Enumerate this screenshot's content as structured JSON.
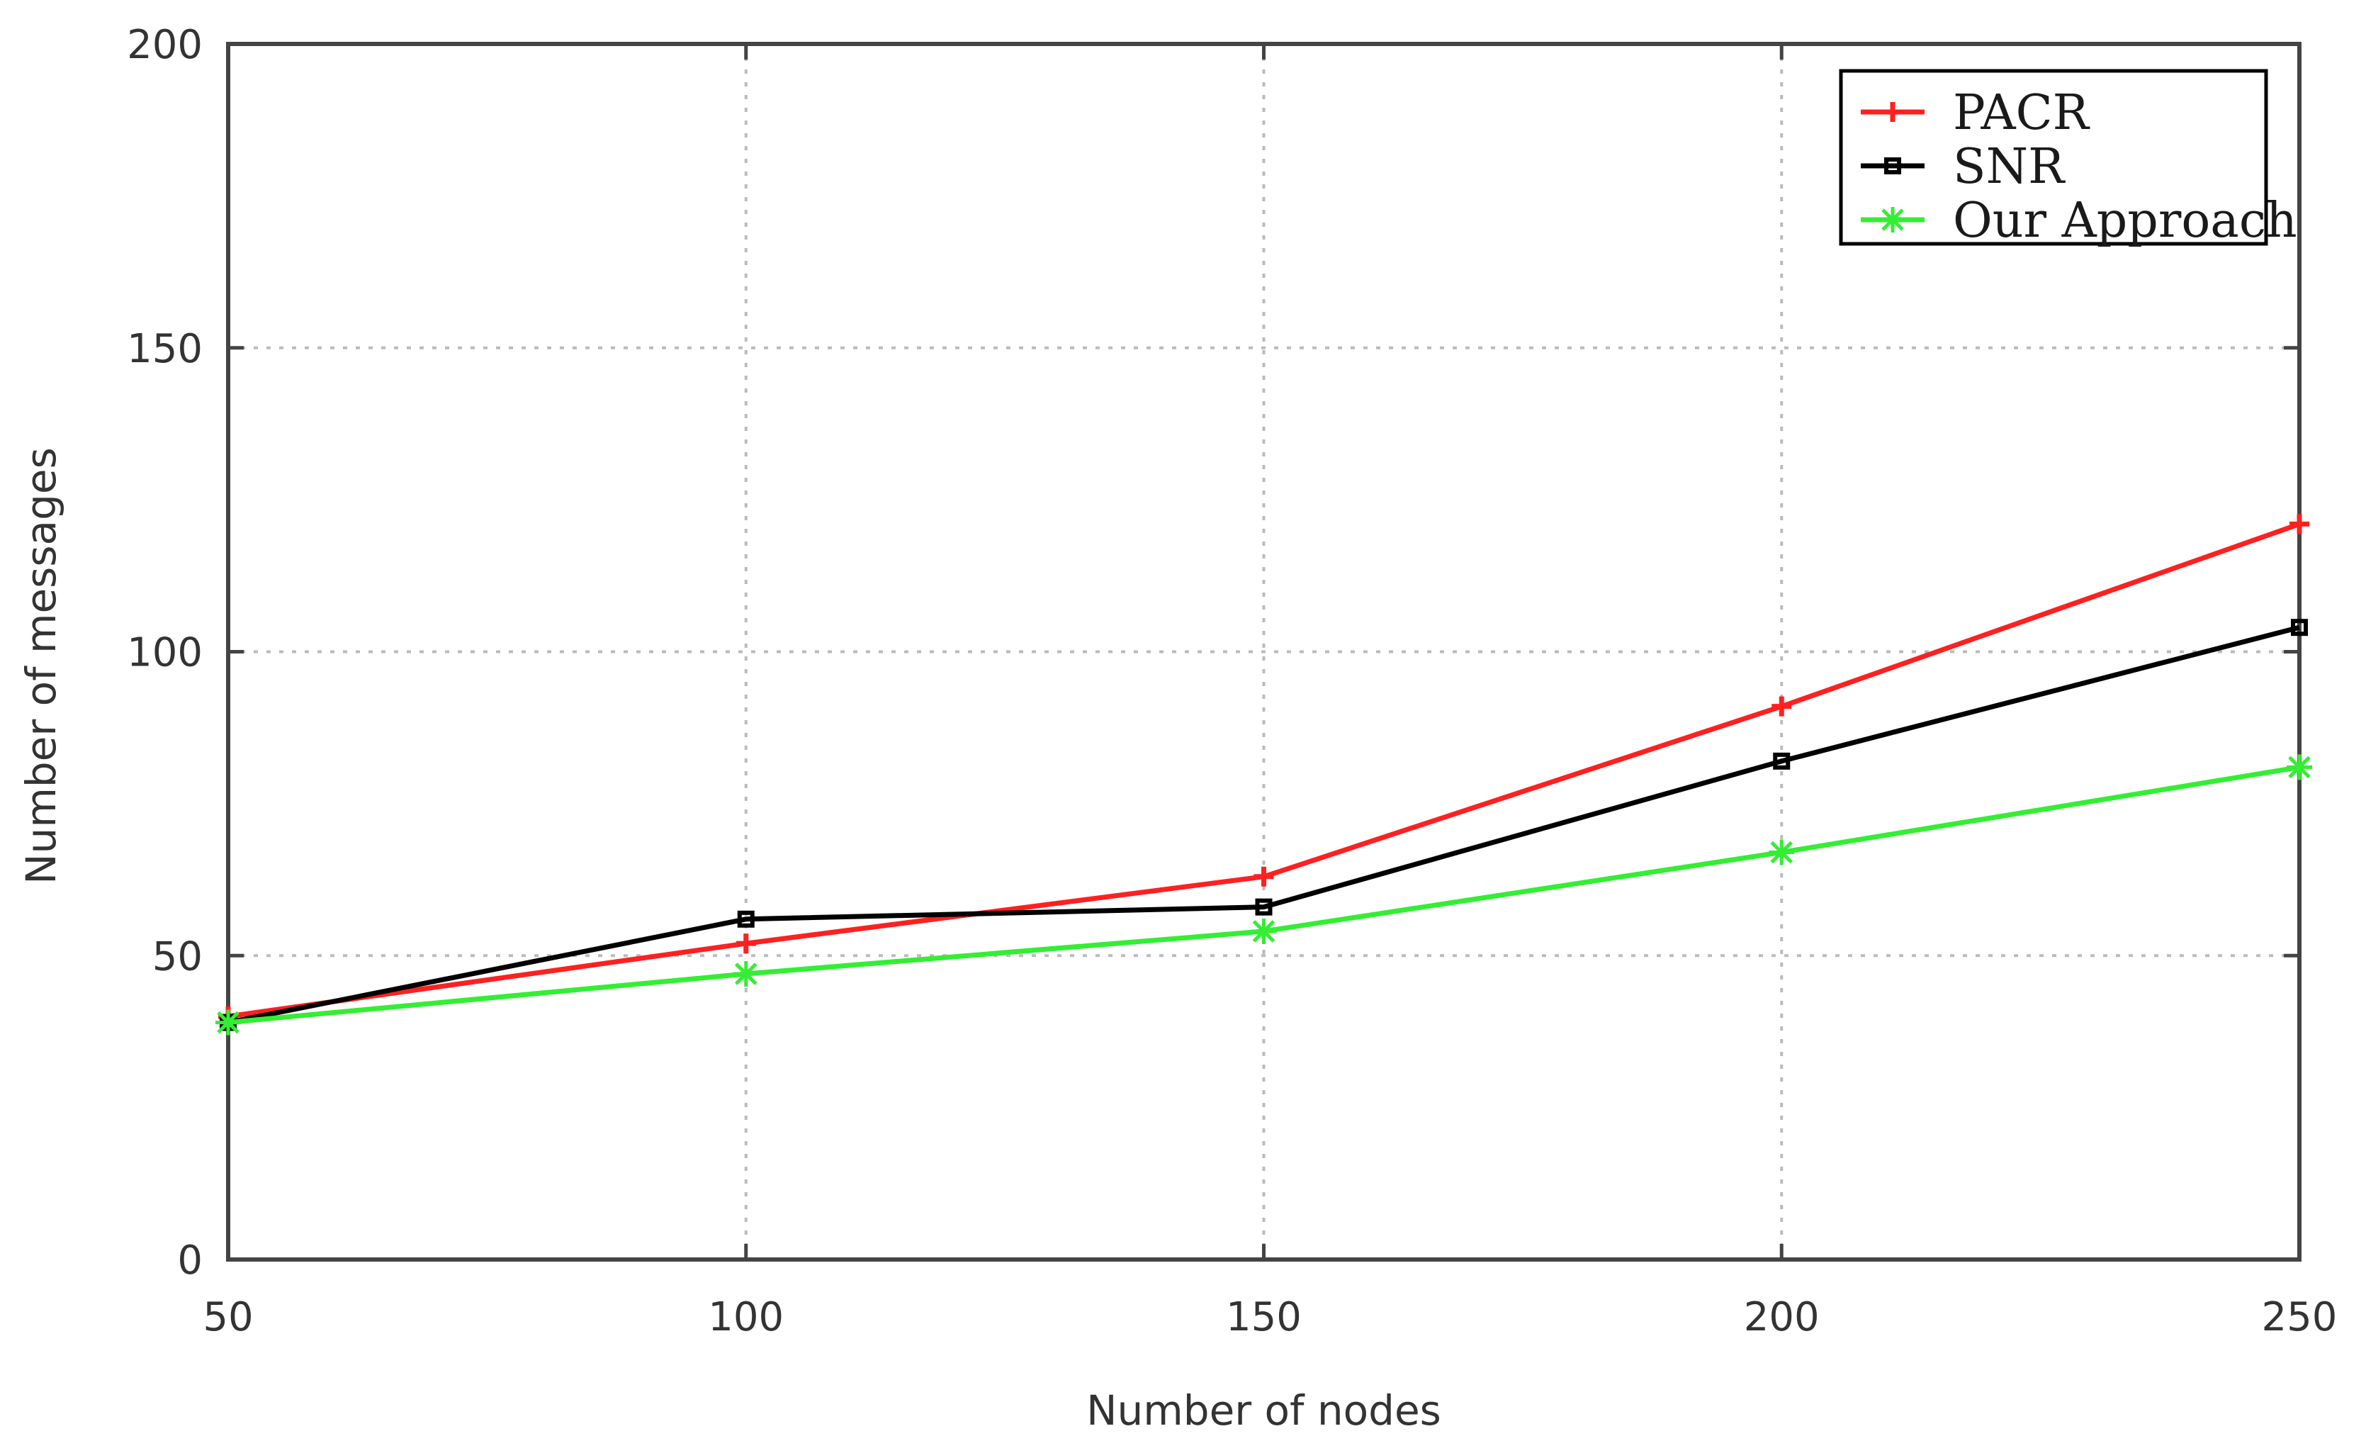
{
  "chart_data": {
    "type": "line",
    "title": "",
    "xlabel": "Number of nodes",
    "ylabel": "Number of messages",
    "xlim": [
      50,
      250
    ],
    "ylim": [
      0,
      200
    ],
    "x_ticks": [
      "50",
      "100",
      "150",
      "200",
      "250"
    ],
    "y_ticks": [
      "0",
      "50",
      "100",
      "150",
      "200"
    ],
    "grid": true,
    "legend_position": "top-right",
    "x": [
      50,
      100,
      150,
      200,
      250
    ],
    "series": [
      {
        "name": "PACR",
        "values": [
          40,
          52,
          63,
          91,
          121
        ],
        "color": "#ff2020",
        "marker": "plus"
      },
      {
        "name": "SNR",
        "values": [
          39,
          56,
          58,
          82,
          104
        ],
        "color": "#000000",
        "marker": "square"
      },
      {
        "name": "Our Approach",
        "values": [
          39,
          47,
          54,
          67,
          81
        ],
        "color": "#33ee33",
        "marker": "star"
      }
    ]
  }
}
